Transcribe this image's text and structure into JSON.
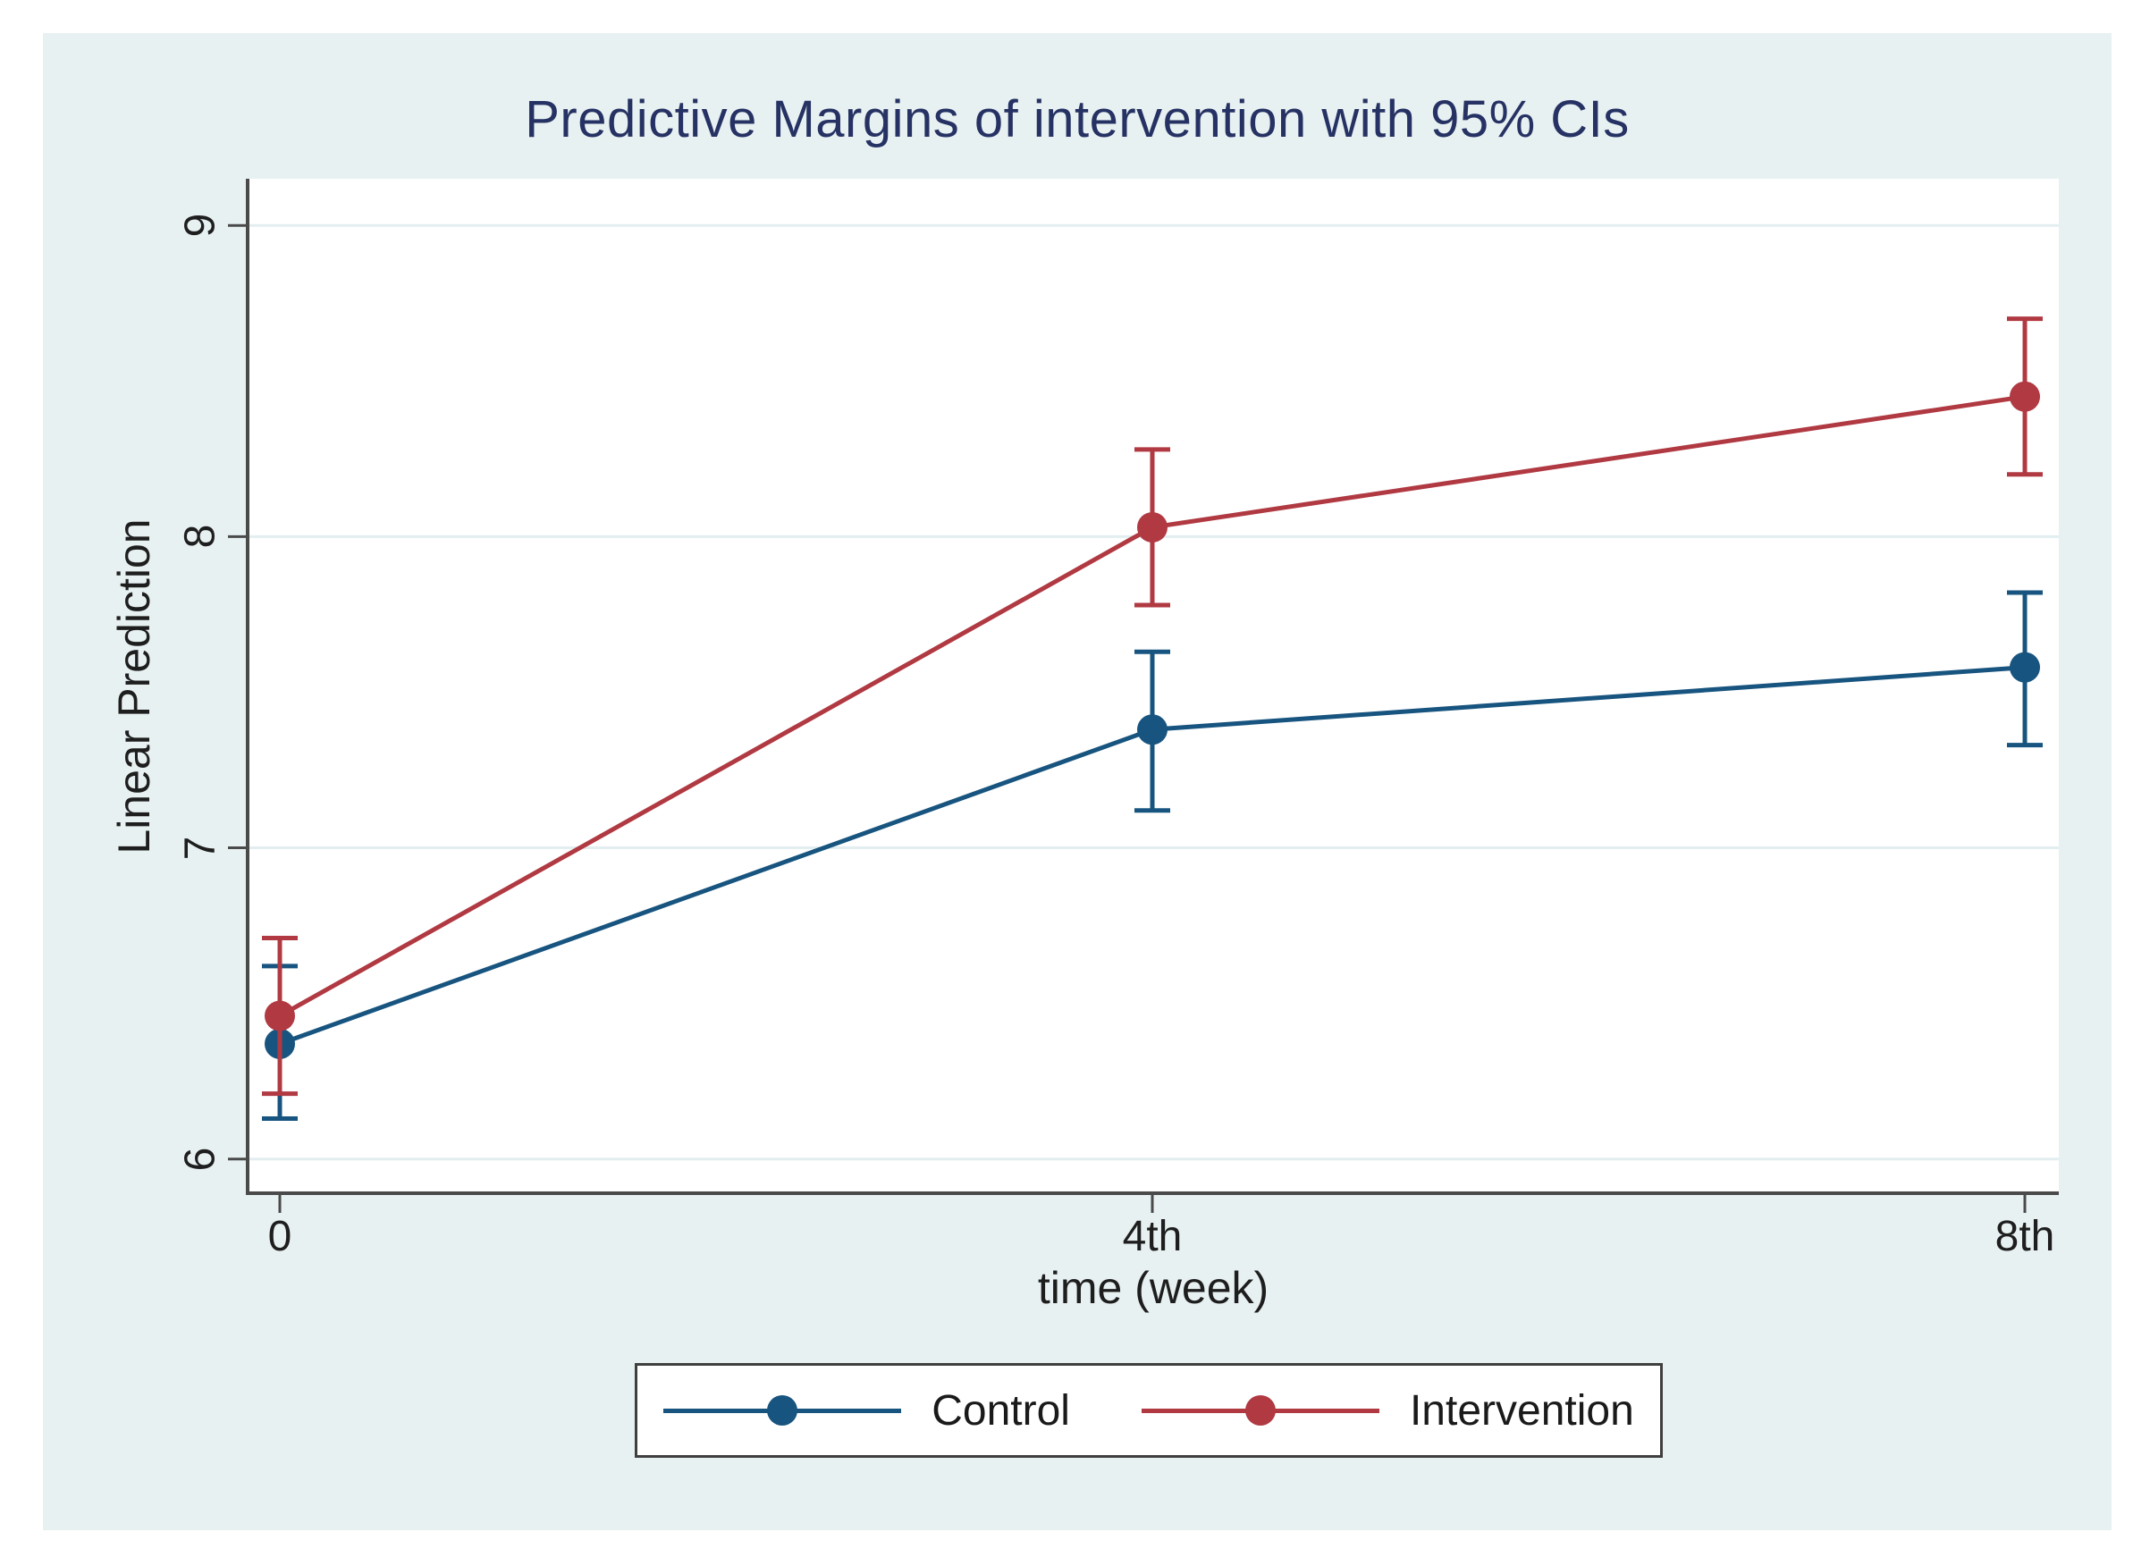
{
  "figure": {
    "background_color": "#e8f1f2",
    "plot_background_color": "#ffffff",
    "gridline_color": "#e3eef0",
    "axis_color": "#4a4a4a",
    "text_color": "#1e1e1e",
    "title_color": "#263263"
  },
  "chart_data": {
    "type": "line",
    "title": "Predictive Margins of intervention with 95% CIs",
    "xlabel": "time (week)",
    "ylabel": "Linear Prediction",
    "x_tick_labels": [
      "0",
      "4th",
      "8th"
    ],
    "x_values": [
      0,
      4,
      8
    ],
    "y_ticks": [
      6,
      7,
      8,
      9
    ],
    "y_tick_labels": [
      "6",
      "7",
      "8",
      "9"
    ],
    "ylim": [
      5.89,
      9.15
    ],
    "grid": true,
    "error_bars": "95% CI",
    "legend_position": "bottom-center",
    "series": [
      {
        "name": "Control",
        "color": "#17547f",
        "values": [
          6.37,
          7.38,
          7.58
        ],
        "ci_low": [
          6.13,
          7.12,
          7.33
        ],
        "ci_high": [
          6.62,
          7.63,
          7.82
        ]
      },
      {
        "name": "Intervention",
        "color": "#b03942",
        "values": [
          6.46,
          8.03,
          8.45
        ],
        "ci_low": [
          6.21,
          7.78,
          8.2
        ],
        "ci_high": [
          6.71,
          8.28,
          8.7
        ]
      }
    ]
  }
}
